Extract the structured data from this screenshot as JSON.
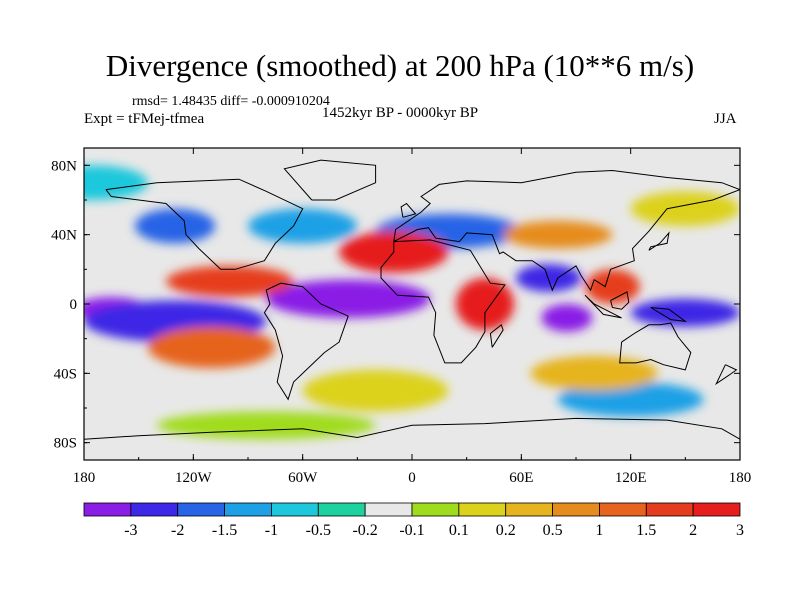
{
  "title": "Divergence (smoothed) at 200 hPa (10**6 m/s)",
  "stats_text": "rmsd= 1.48435 diff= -0.000910204",
  "experiment_text": "Expt = tFMej-tfmea",
  "period_text": "1452kyr BP - 0000kyr BP",
  "season_text": "JJA",
  "colors": {
    "land_outline": "#000000",
    "neutral": "#e8e8e8",
    "levels": [
      "#8a1ee6",
      "#3c28e6",
      "#2864e6",
      "#1ea0e6",
      "#1ec8dc",
      "#1ed2a0",
      "#e8e8e8",
      "#a0dc1e",
      "#dcd21e",
      "#e6b41e",
      "#e68c1e",
      "#e6641e",
      "#e63c1e",
      "#e61e1e"
    ]
  },
  "chart_data": {
    "type": "heatmap",
    "title": "Divergence (smoothed) at 200 hPa (10**6 m/s)",
    "x_ticks": [
      {
        "value": -180,
        "label": "180"
      },
      {
        "value": -120,
        "label": "120W"
      },
      {
        "value": -60,
        "label": "60W"
      },
      {
        "value": 0,
        "label": "0"
      },
      {
        "value": 60,
        "label": "60E"
      },
      {
        "value": 120,
        "label": "120E"
      },
      {
        "value": 180,
        "label": "180"
      }
    ],
    "y_ticks": [
      {
        "value": 80,
        "label": "80N"
      },
      {
        "value": 40,
        "label": "40N"
      },
      {
        "value": 0,
        "label": "0"
      },
      {
        "value": -40,
        "label": "40S"
      },
      {
        "value": -80,
        "label": "80S"
      }
    ],
    "xlim": [
      -180,
      180
    ],
    "ylim": [
      -90,
      90
    ],
    "colorbar_labels": [
      "-3",
      "-2",
      "-1.5",
      "-1",
      "-0.5",
      "-0.2",
      "-0.1",
      "0.1",
      "0.2",
      "0.5",
      "1",
      "1.5",
      "2",
      "3"
    ],
    "features": [
      {
        "lon": -35,
        "lat": 3,
        "rx": 45,
        "ry": 11,
        "level": 0
      },
      {
        "lon": -165,
        "lat": -3,
        "rx": 20,
        "ry": 7,
        "level": 0
      },
      {
        "lon": 85,
        "lat": -8,
        "rx": 14,
        "ry": 8,
        "level": 0
      },
      {
        "lon": 75,
        "lat": 15,
        "rx": 18,
        "ry": 8,
        "level": 1
      },
      {
        "lon": -130,
        "lat": -10,
        "rx": 50,
        "ry": 12,
        "level": 1
      },
      {
        "lon": 150,
        "lat": -5,
        "rx": 30,
        "ry": 8,
        "level": 1
      },
      {
        "lon": -130,
        "lat": 45,
        "rx": 22,
        "ry": 10,
        "level": 2
      },
      {
        "lon": 20,
        "lat": 42,
        "rx": 40,
        "ry": 10,
        "level": 2
      },
      {
        "lon": -60,
        "lat": 45,
        "rx": 30,
        "ry": 10,
        "level": 3
      },
      {
        "lon": 120,
        "lat": -55,
        "rx": 40,
        "ry": 10,
        "level": 3
      },
      {
        "lon": -175,
        "lat": 70,
        "rx": 30,
        "ry": 10,
        "level": 4
      },
      {
        "lon": -10,
        "lat": 30,
        "rx": 30,
        "ry": 12,
        "level": 13
      },
      {
        "lon": 40,
        "lat": 0,
        "rx": 16,
        "ry": 15,
        "level": 13
      },
      {
        "lon": -100,
        "lat": 13,
        "rx": 35,
        "ry": 9,
        "level": 12
      },
      {
        "lon": 110,
        "lat": 10,
        "rx": 15,
        "ry": 10,
        "level": 12
      },
      {
        "lon": -110,
        "lat": -25,
        "rx": 35,
        "ry": 12,
        "level": 11
      },
      {
        "lon": 80,
        "lat": 40,
        "rx": 30,
        "ry": 8,
        "level": 10
      },
      {
        "lon": 100,
        "lat": -40,
        "rx": 35,
        "ry": 10,
        "level": 9
      },
      {
        "lon": -20,
        "lat": -50,
        "rx": 40,
        "ry": 12,
        "level": 8
      },
      {
        "lon": 150,
        "lat": 55,
        "rx": 30,
        "ry": 10,
        "level": 8
      },
      {
        "lon": -80,
        "lat": -70,
        "rx": 60,
        "ry": 8,
        "level": 7
      }
    ]
  }
}
